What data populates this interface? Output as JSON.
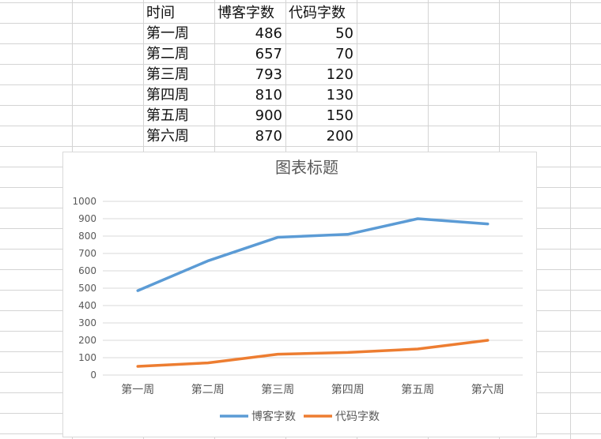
{
  "table": {
    "headers": [
      "时间",
      "博客字数",
      "代码字数"
    ],
    "rows": [
      [
        "第一周",
        "486",
        "50"
      ],
      [
        "第二周",
        "657",
        "70"
      ],
      [
        "第三周",
        "793",
        "120"
      ],
      [
        "第四周",
        "810",
        "130"
      ],
      [
        "第五周",
        "900",
        "150"
      ],
      [
        "第六周",
        "870",
        "200"
      ]
    ]
  },
  "colors": {
    "gridline": "#d9d9d9",
    "series_blog": "#5b9bd5",
    "series_code": "#ed7d31"
  },
  "chart_data": {
    "type": "line",
    "title": "图表标题",
    "categories": [
      "第一周",
      "第二周",
      "第三周",
      "第四周",
      "第五周",
      "第六周"
    ],
    "series": [
      {
        "name": "博客字数",
        "values": [
          486,
          657,
          793,
          810,
          900,
          870
        ],
        "color": "#5b9bd5"
      },
      {
        "name": "代码字数",
        "values": [
          50,
          70,
          120,
          130,
          150,
          200
        ],
        "color": "#ed7d31"
      }
    ],
    "ylim": [
      0,
      1000
    ],
    "yticks": [
      0,
      100,
      200,
      300,
      400,
      500,
      600,
      700,
      800,
      900,
      1000
    ],
    "grid": true,
    "legend": "bottom"
  }
}
